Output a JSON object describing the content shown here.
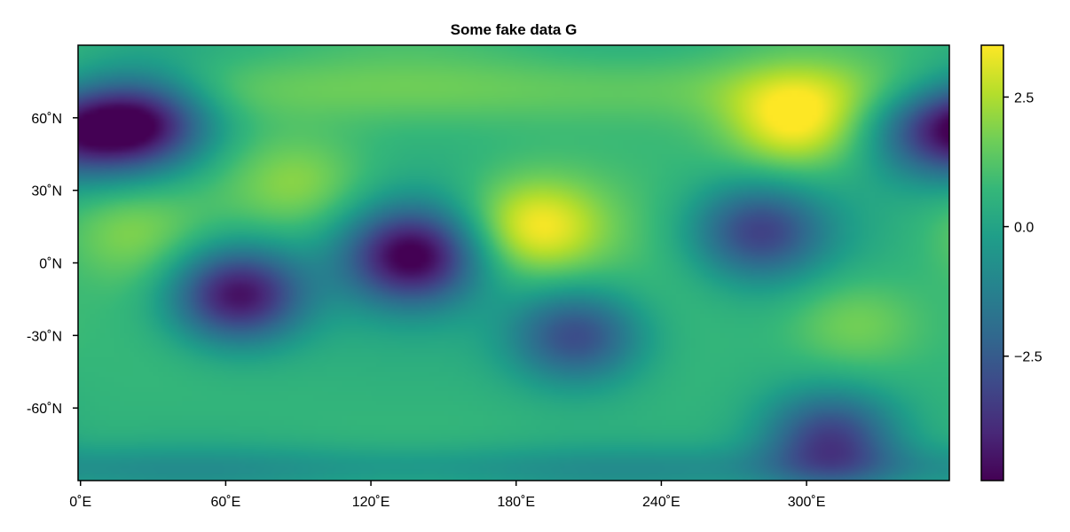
{
  "chart_data": {
    "type": "heatmap",
    "title": "Some fake data G",
    "xlabel": "",
    "ylabel": "",
    "x_ticks": [
      {
        "value": 0,
        "label": "0˚E"
      },
      {
        "value": 60,
        "label": "60˚E"
      },
      {
        "value": 120,
        "label": "120˚E"
      },
      {
        "value": 180,
        "label": "180˚E"
      },
      {
        "value": 240,
        "label": "240˚E"
      },
      {
        "value": 300,
        "label": "300˚E"
      }
    ],
    "y_ticks": [
      {
        "value": 60,
        "label": "60˚N"
      },
      {
        "value": 30,
        "label": "30˚N"
      },
      {
        "value": 0,
        "label": "0˚N"
      },
      {
        "value": -30,
        "label": "-30˚N"
      },
      {
        "value": -60,
        "label": "-60˚N"
      }
    ],
    "xlim": [
      -1,
      359
    ],
    "ylim": [
      -90,
      90
    ],
    "colormap": "viridis",
    "colorbar": {
      "range": [
        -4.9,
        3.5
      ],
      "ticks": [
        {
          "value": 2.5,
          "label": "2.5"
        },
        {
          "value": 0.0,
          "label": "0.0"
        },
        {
          "value": -2.5,
          "label": "−2.5"
        }
      ]
    },
    "features": [
      {
        "lon": 25,
        "lat": 58,
        "value": -4.6
      },
      {
        "lon": 65,
        "lat": -13,
        "value": -4.8
      },
      {
        "lon": 137,
        "lat": 3,
        "value": -4.8
      },
      {
        "lon": 205,
        "lat": -30,
        "value": -3.1
      },
      {
        "lon": 280,
        "lat": 13,
        "value": -3.1
      },
      {
        "lon": 355,
        "lat": 55,
        "value": -3.3
      },
      {
        "lon": 310,
        "lat": -73,
        "value": -3.4
      },
      {
        "lon": 188,
        "lat": 15,
        "value": 3.4
      },
      {
        "lon": 295,
        "lat": 58,
        "value": 3.5
      },
      {
        "lon": 90,
        "lat": 33,
        "value": 2.0
      },
      {
        "lon": 20,
        "lat": 12,
        "value": 1.7
      },
      {
        "lon": 320,
        "lat": -25,
        "value": 2.0
      }
    ]
  }
}
